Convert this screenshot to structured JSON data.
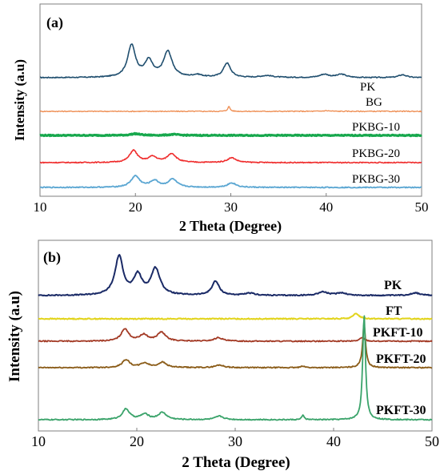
{
  "chart_data": [
    {
      "type": "line",
      "panel_label": "(a)",
      "xlabel": "2 Theta (Degree)",
      "ylabel": "Intensity (a.u)",
      "xlim": [
        10,
        50
      ],
      "x_ticks": [
        "10",
        "20",
        "30",
        "40",
        "50"
      ],
      "grid": false,
      "label_weight": "normal",
      "series": [
        {
          "name": "PK",
          "color": "#1f4e6e",
          "width": 1.6,
          "baseline": 1.0,
          "peaks": [
            [
              19.6,
              2.0,
              0.5
            ],
            [
              21.4,
              1.0,
              0.5
            ],
            [
              23.4,
              1.6,
              0.55
            ],
            [
              29.6,
              0.9,
              0.45
            ],
            [
              26.5,
              0.15,
              0.6
            ],
            [
              33.8,
              0.12,
              0.8
            ],
            [
              39.8,
              0.2,
              0.6
            ],
            [
              41.6,
              0.2,
              0.6
            ],
            [
              48.0,
              0.18,
              0.5
            ]
          ],
          "values_note": ""
        },
        {
          "name": "BG",
          "color": "#ee8a4d",
          "width": 1.3,
          "baseline": 0.0,
          "peaks": [
            [
              29.8,
              0.3,
              0.15
            ],
            [
              40.0,
              0.04,
              0.5
            ]
          ]
        },
        {
          "name": "PKBG-10",
          "color": "#17a84d",
          "width": 3.2,
          "baseline": 0.0,
          "peaks": [
            [
              20.0,
              0.1,
              0.6
            ],
            [
              24.0,
              0.06,
              0.6
            ]
          ]
        },
        {
          "name": "PKBG-20",
          "color": "#ef2b2b",
          "width": 1.6,
          "baseline": 0.0,
          "peaks": [
            [
              19.8,
              0.75,
              0.5
            ],
            [
              21.8,
              0.35,
              0.55
            ],
            [
              23.8,
              0.55,
              0.55
            ],
            [
              30.1,
              0.3,
              0.55
            ]
          ]
        },
        {
          "name": "PKBG-30",
          "color": "#5aa6d2",
          "width": 1.8,
          "baseline": 0.0,
          "peaks": [
            [
              20.0,
              0.7,
              0.55
            ],
            [
              22.0,
              0.4,
              0.55
            ],
            [
              23.9,
              0.5,
              0.55
            ],
            [
              30.1,
              0.28,
              0.55
            ]
          ]
        }
      ]
    },
    {
      "type": "line",
      "panel_label": "(b)",
      "xlabel": "2 Theta (Degree)",
      "ylabel": "Intensity (a.u)",
      "xlim": [
        10,
        50
      ],
      "x_ticks": [
        "10",
        "20",
        "30",
        "40",
        "50"
      ],
      "grid": false,
      "label_weight": "bold",
      "series": [
        {
          "name": "PK",
          "color": "#1a2a66",
          "width": 2.0,
          "peaks": [
            [
              18.2,
              2.2,
              0.5
            ],
            [
              20.1,
              1.1,
              0.5
            ],
            [
              21.9,
              1.5,
              0.55
            ],
            [
              28.0,
              0.8,
              0.45
            ],
            [
              31.5,
              0.12,
              0.6
            ],
            [
              38.9,
              0.2,
              0.6
            ],
            [
              40.8,
              0.15,
              0.6
            ],
            [
              48.3,
              0.15,
              0.6
            ]
          ]
        },
        {
          "name": "FT",
          "color": "#e2d41c",
          "width": 2.0,
          "peaks": [
            [
              42.3,
              0.3,
              0.35
            ]
          ]
        },
        {
          "name": "PKFT-10",
          "color": "#a33a25",
          "width": 1.8,
          "peaks": [
            [
              18.8,
              0.7,
              0.45
            ],
            [
              20.7,
              0.35,
              0.5
            ],
            [
              22.5,
              0.5,
              0.5
            ],
            [
              28.3,
              0.2,
              0.5
            ],
            [
              42.9,
              0.2,
              0.3
            ]
          ]
        },
        {
          "name": "PKFT-20",
          "color": "#8a5b17",
          "width": 1.8,
          "peaks": [
            [
              18.9,
              0.45,
              0.45
            ],
            [
              20.8,
              0.25,
              0.5
            ],
            [
              22.6,
              0.3,
              0.5
            ],
            [
              28.4,
              0.15,
              0.5
            ],
            [
              36.9,
              0.1,
              0.2
            ],
            [
              43.1,
              2.5,
              0.18
            ]
          ]
        },
        {
          "name": "PKFT-30",
          "color": "#3aa36a",
          "width": 1.8,
          "peaks": [
            [
              18.9,
              0.6,
              0.45
            ],
            [
              20.8,
              0.3,
              0.5
            ],
            [
              22.6,
              0.4,
              0.5
            ],
            [
              28.4,
              0.2,
              0.5
            ],
            [
              36.9,
              0.25,
              0.15
            ],
            [
              43.1,
              6.0,
              0.17
            ]
          ]
        }
      ]
    }
  ]
}
